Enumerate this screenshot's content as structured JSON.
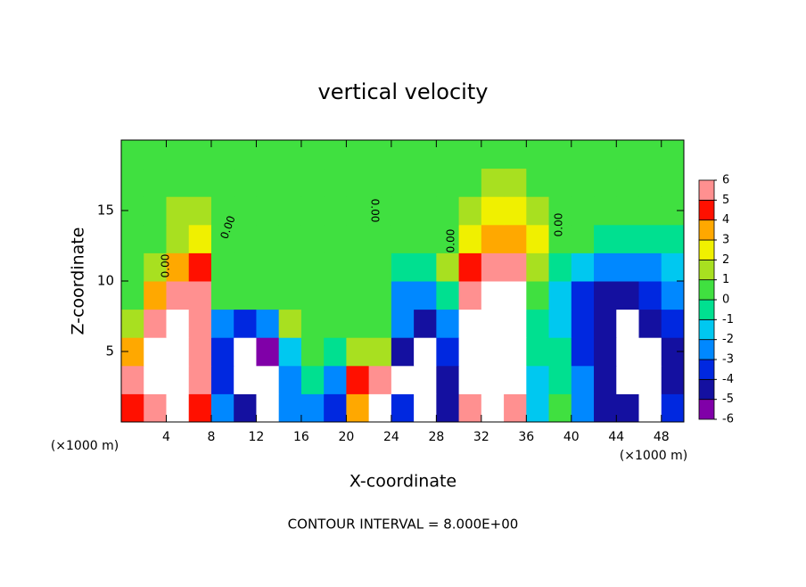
{
  "chart_data": {
    "type": "heatmap",
    "title": "vertical velocity",
    "x_label": "X-coordinate",
    "y_label": "Z-coordinate",
    "x_unit": "(×1000 m)",
    "y_unit": "(×1000 m)",
    "footer": "CONTOUR INTERVAL = 8.000E+00",
    "contour_labels": [
      "0.00",
      "0.00",
      "0.00",
      "0.00",
      "0.00"
    ],
    "xlim": [
      0,
      50
    ],
    "ylim": [
      0,
      20
    ],
    "xticks": [
      4,
      8,
      12,
      16,
      20,
      24,
      28,
      32,
      36,
      40,
      44,
      48
    ],
    "yticks": [
      5,
      10,
      15
    ],
    "x": [
      1,
      3,
      5,
      7,
      9,
      11,
      13,
      15,
      17,
      19,
      21,
      23,
      25,
      27,
      29,
      31,
      33,
      35,
      37,
      39,
      41,
      43,
      45,
      47,
      49
    ],
    "y": [
      1,
      3,
      5,
      7,
      9,
      11,
      13,
      15,
      17,
      19
    ],
    "z": [
      [
        4,
        5,
        8,
        4,
        -3,
        -5,
        -8,
        -3,
        -3,
        -4,
        3,
        8,
        -4,
        -7,
        -5,
        5,
        8,
        5,
        -2,
        0,
        -3,
        -5,
        -5,
        -7,
        -4
      ],
      [
        5,
        8,
        8,
        5,
        -4,
        -8,
        -8,
        -3,
        -1,
        -3,
        4,
        5,
        -7,
        -7,
        -5,
        8,
        8,
        8,
        -2,
        -1,
        -3,
        -5,
        -7,
        -8,
        -5
      ],
      [
        3,
        8,
        8,
        5,
        -4,
        -8,
        -6,
        -2,
        0,
        -1,
        1,
        1,
        -5,
        -7,
        -4,
        8,
        8,
        8,
        -1,
        -1,
        -4,
        -5,
        -8,
        -7,
        -5
      ],
      [
        1,
        5,
        8,
        6,
        -3,
        -4,
        -3,
        1,
        0,
        0,
        0,
        0,
        -3,
        -5,
        -3,
        8,
        8,
        8,
        -1,
        -2,
        -4,
        -5,
        -8,
        -5,
        -4
      ],
      [
        0,
        3,
        6,
        5,
        0,
        0,
        0,
        0,
        0,
        0,
        0,
        0,
        -3,
        -3,
        -1,
        6,
        8,
        7,
        0,
        -2,
        -4,
        -5,
        -5,
        -4,
        -3
      ],
      [
        0,
        1,
        3,
        4,
        0,
        0,
        0,
        0,
        0,
        0,
        0,
        0,
        -1,
        -1,
        1,
        4,
        6,
        5,
        1,
        -1,
        -2,
        -3,
        -3,
        -3,
        -2
      ],
      [
        0,
        0,
        1,
        2,
        0,
        0,
        0,
        0,
        0,
        0,
        0,
        0,
        0,
        0,
        0,
        2,
        3,
        3,
        2,
        0,
        0,
        -1,
        -1,
        -1,
        -1
      ],
      [
        0,
        0,
        1,
        1,
        0,
        0,
        0,
        0,
        0,
        0,
        0,
        0,
        0,
        0,
        0,
        1,
        2,
        2,
        1,
        0,
        0,
        0,
        0,
        0,
        0
      ],
      [
        0,
        0,
        0,
        0,
        0,
        0,
        0,
        0,
        0,
        0,
        0,
        0,
        0,
        0,
        0,
        0,
        1,
        1,
        0,
        0,
        0,
        0,
        0,
        0,
        0
      ],
      [
        0,
        0,
        0,
        0,
        0,
        0,
        0,
        0,
        0,
        0,
        0,
        0,
        0,
        0,
        0,
        0,
        0,
        0,
        0,
        0,
        0,
        0,
        0,
        0,
        0
      ]
    ],
    "colorbar_ticks": [
      -6,
      -5,
      -4,
      -3,
      -2,
      -1,
      0,
      1,
      2,
      3,
      4,
      5,
      6
    ],
    "colorscale": [
      "#8000a8",
      "#1410a0",
      "#0028e0",
      "#0088ff",
      "#00c8f0",
      "#00e090",
      "#40e040",
      "#a8e020",
      "#f0f000",
      "#ffa800",
      "#ff1000",
      "#ff9090"
    ],
    "out_of_range_color": "#ffffff"
  }
}
